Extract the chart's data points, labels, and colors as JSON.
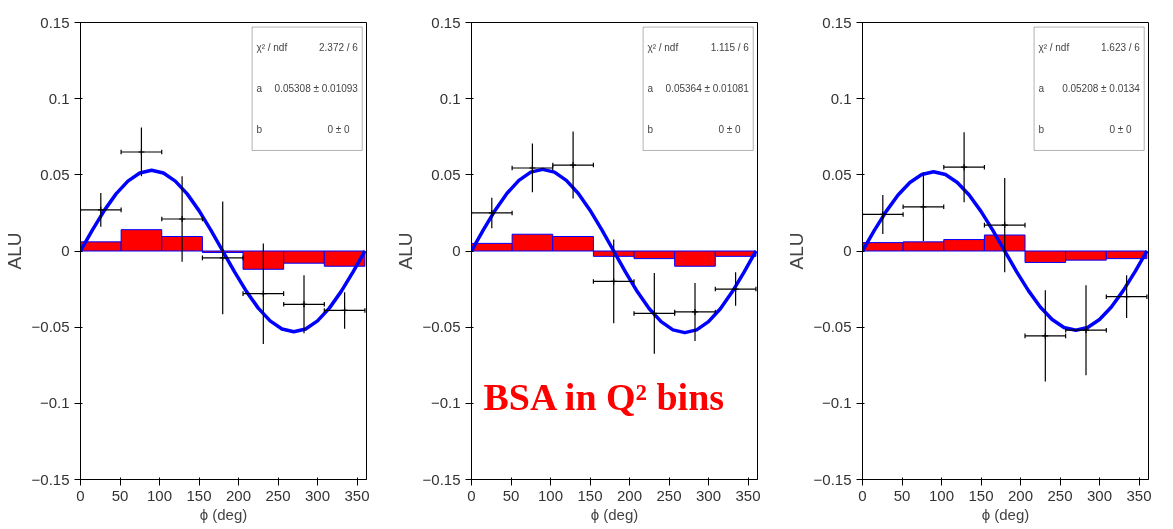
{
  "chart_data": [
    {
      "type": "scatter",
      "xlabel": "ϕ (deg)",
      "ylabel": "ALU",
      "xlim": [
        0,
        362
      ],
      "ylim": [
        -0.15,
        0.15
      ],
      "xticks": [
        0,
        50,
        100,
        150,
        200,
        250,
        300,
        350
      ],
      "yticks": [
        -0.15,
        -0.1,
        -0.05,
        0,
        0.05,
        0.1,
        0.15
      ],
      "grid": false,
      "annotations": [
        "χ² / ndf",
        "2.372 / 6",
        "a",
        "0.05308 ± 0.01093",
        "b",
        "0 ±    0"
      ],
      "series": [
        {
          "type": "histogram",
          "color": "#ff0000",
          "bins": [
            0,
            51.43,
            102.86,
            154.29,
            205.71,
            257.14,
            308.57,
            360
          ],
          "values": [
            0.006,
            0.014,
            0.0095,
            -0.001,
            -0.012,
            -0.008,
            -0.01
          ]
        },
        {
          "type": "line",
          "color": "#0000ff",
          "x": [
            0,
            15,
            30,
            45,
            60,
            75,
            90,
            105,
            120,
            135,
            150,
            165,
            180,
            195,
            210,
            225,
            240,
            255,
            270,
            285,
            300,
            315,
            330,
            345,
            360
          ],
          "values": [
            0,
            0.0137,
            0.0265,
            0.0375,
            0.0459,
            0.0512,
            0.053,
            0.0512,
            0.0459,
            0.0375,
            0.0265,
            0.0137,
            0,
            -0.0137,
            -0.0265,
            -0.0375,
            -0.0459,
            -0.0512,
            -0.053,
            -0.0512,
            -0.0459,
            -0.0375,
            -0.0265,
            -0.0137,
            0
          ]
        },
        {
          "type": "scatter",
          "marker": "cross",
          "color": "#000000",
          "x": [
            25.7,
            77.1,
            128.6,
            180,
            231.4,
            282.9,
            334.3
          ],
          "values": [
            0.027,
            0.065,
            0.021,
            -0.0045,
            -0.028,
            -0.035,
            -0.039
          ],
          "errors": [
            0.011,
            0.016,
            0.028,
            0.037,
            0.033,
            0.019,
            0.012
          ],
          "xerrors": [
            25.7,
            25.7,
            25.7,
            25.7,
            25.7,
            25.7,
            25.7
          ]
        }
      ]
    },
    {
      "type": "scatter",
      "xlabel": "ϕ (deg)",
      "ylabel": "ALU",
      "xlim": [
        0,
        362
      ],
      "ylim": [
        -0.15,
        0.15
      ],
      "xticks": [
        0,
        50,
        100,
        150,
        200,
        250,
        300,
        350
      ],
      "yticks": [
        -0.15,
        -0.1,
        -0.05,
        0,
        0.05,
        0.1,
        0.15
      ],
      "grid": false,
      "annotations": [
        "χ² / ndf",
        "1.115 / 6",
        "a",
        "0.05364 ± 0.01081",
        "b",
        "0 ±    0",
        "BSA in Q² bins"
      ],
      "series": [
        {
          "type": "histogram",
          "color": "#ff0000",
          "bins": [
            0,
            51.43,
            102.86,
            154.29,
            205.71,
            257.14,
            308.57,
            360
          ],
          "values": [
            0.005,
            0.011,
            0.0095,
            -0.0035,
            -0.005,
            -0.01,
            -0.0035
          ]
        },
        {
          "type": "line",
          "color": "#0000ff",
          "x": [
            0,
            15,
            30,
            45,
            60,
            75,
            90,
            105,
            120,
            135,
            150,
            165,
            180,
            195,
            210,
            225,
            240,
            255,
            270,
            285,
            300,
            315,
            330,
            345,
            360
          ],
          "values": [
            0,
            0.0139,
            0.0268,
            0.0379,
            0.0464,
            0.0518,
            0.0536,
            0.0518,
            0.0464,
            0.0379,
            0.0268,
            0.0139,
            0,
            -0.0139,
            -0.0268,
            -0.0379,
            -0.0464,
            -0.0518,
            -0.0536,
            -0.0518,
            -0.0464,
            -0.0379,
            -0.0268,
            -0.0139,
            0
          ]
        },
        {
          "type": "scatter",
          "marker": "cross",
          "color": "#000000",
          "x": [
            25.7,
            77.1,
            128.6,
            180,
            231.4,
            282.9,
            334.3
          ],
          "values": [
            0.025,
            0.0545,
            0.0564,
            -0.02,
            -0.041,
            -0.04,
            -0.025
          ],
          "errors": [
            0.01,
            0.016,
            0.022,
            0.0275,
            0.0265,
            0.019,
            0.011
          ],
          "xerrors": [
            25.7,
            25.7,
            25.7,
            25.7,
            25.7,
            25.7,
            25.7
          ]
        }
      ]
    },
    {
      "type": "scatter",
      "xlabel": "ϕ (deg)",
      "ylabel": "ALU",
      "xlim": [
        0,
        362
      ],
      "ylim": [
        -0.15,
        0.15
      ],
      "xticks": [
        0,
        50,
        100,
        150,
        200,
        250,
        300,
        350
      ],
      "yticks": [
        -0.15,
        -0.1,
        -0.05,
        0,
        0.05,
        0.1,
        0.15
      ],
      "grid": false,
      "annotations": [
        "χ² / ndf",
        "1.623 / 6",
        "a",
        "0.05208 ± 0.0134",
        "b",
        "0 ±    0"
      ],
      "series": [
        {
          "type": "histogram",
          "color": "#ff0000",
          "bins": [
            0,
            51.43,
            102.86,
            154.29,
            205.71,
            257.14,
            308.57,
            360
          ],
          "values": [
            0.0055,
            0.006,
            0.0075,
            0.0105,
            -0.0075,
            -0.006,
            -0.005
          ]
        },
        {
          "type": "line",
          "color": "#0000ff",
          "x": [
            0,
            15,
            30,
            45,
            60,
            75,
            90,
            105,
            120,
            135,
            150,
            165,
            180,
            195,
            210,
            225,
            240,
            255,
            270,
            285,
            300,
            315,
            330,
            345,
            360
          ],
          "values": [
            0,
            0.0135,
            0.026,
            0.0368,
            0.045,
            0.0502,
            0.052,
            0.0502,
            0.045,
            0.0368,
            0.026,
            0.0135,
            0,
            -0.0135,
            -0.026,
            -0.0368,
            -0.045,
            -0.0502,
            -0.052,
            -0.0502,
            -0.045,
            -0.0368,
            -0.026,
            -0.0135,
            0
          ]
        },
        {
          "type": "scatter",
          "marker": "cross",
          "color": "#000000",
          "x": [
            25.7,
            77.1,
            128.6,
            180,
            231.4,
            282.9,
            334.3
          ],
          "values": [
            0.024,
            0.029,
            0.055,
            0.017,
            -0.0557,
            -0.052,
            -0.03
          ],
          "errors": [
            0.0128,
            0.0225,
            0.023,
            0.031,
            0.03,
            0.0295,
            0.014
          ],
          "xerrors": [
            25.7,
            25.7,
            25.7,
            25.7,
            25.7,
            25.7,
            25.7
          ]
        }
      ]
    }
  ]
}
